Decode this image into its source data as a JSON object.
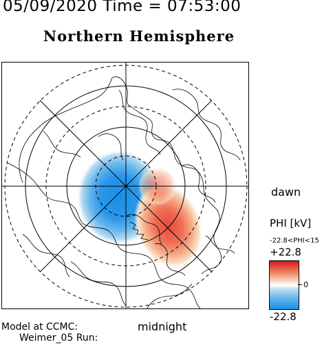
{
  "header": {
    "datetime": "05/09/2020 Time = 07:53:00",
    "title": "Northern Hemisphere"
  },
  "map": {
    "orientation_labels": {
      "dawn": "dawn",
      "midnight": "midnight"
    },
    "projection": "polar",
    "center": "north-pole"
  },
  "footer": {
    "model_line1": "Model at CCMC:",
    "model_line2": "Weimer_05 Run:"
  },
  "colorbar": {
    "title": "PHI [kV]",
    "range_text": "-22.8<PHI<15",
    "max_label": "+22.8",
    "zero_label": "0",
    "min_label": "-22.8",
    "max_color": "#d41818",
    "min_color": "#1b8fe6"
  },
  "potential": {
    "cells": [
      {
        "sign": "negative",
        "color": "#1b8fe6"
      },
      {
        "sign": "positive",
        "color": "#e84a3a"
      }
    ]
  }
}
